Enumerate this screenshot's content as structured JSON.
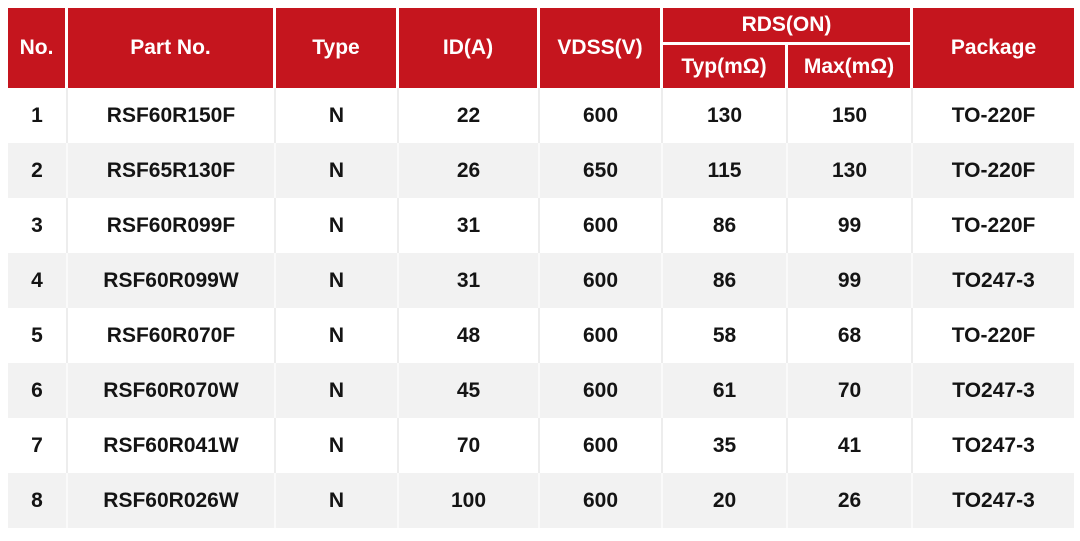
{
  "colors": {
    "header_bg": "#C5151E",
    "header_text": "#FFFFFF",
    "row_alt_bg": "#F2F2F2",
    "body_text": "#141414"
  },
  "table": {
    "headers": {
      "no": "No.",
      "part_no": "Part No.",
      "type": "Type",
      "id": "ID(A)",
      "vdss": "VDSS(V)",
      "rds_group": "RDS(ON)",
      "rds_typ": "Typ(mΩ)",
      "rds_max": "Max(mΩ)",
      "package": "Package"
    },
    "rows": [
      {
        "no": "1",
        "part_no": "RSF60R150F",
        "type": "N",
        "id": "22",
        "vdss": "600",
        "rds_typ": "130",
        "rds_max": "150",
        "package": "TO-220F"
      },
      {
        "no": "2",
        "part_no": "RSF65R130F",
        "type": "N",
        "id": "26",
        "vdss": "650",
        "rds_typ": "115",
        "rds_max": "130",
        "package": "TO-220F"
      },
      {
        "no": "3",
        "part_no": "RSF60R099F",
        "type": "N",
        "id": "31",
        "vdss": "600",
        "rds_typ": "86",
        "rds_max": "99",
        "package": "TO-220F"
      },
      {
        "no": "4",
        "part_no": "RSF60R099W",
        "type": "N",
        "id": "31",
        "vdss": "600",
        "rds_typ": "86",
        "rds_max": "99",
        "package": "TO247-3"
      },
      {
        "no": "5",
        "part_no": "RSF60R070F",
        "type": "N",
        "id": "48",
        "vdss": "600",
        "rds_typ": "58",
        "rds_max": "68",
        "package": "TO-220F"
      },
      {
        "no": "6",
        "part_no": "RSF60R070W",
        "type": "N",
        "id": "45",
        "vdss": "600",
        "rds_typ": "61",
        "rds_max": "70",
        "package": "TO247-3"
      },
      {
        "no": "7",
        "part_no": "RSF60R041W",
        "type": "N",
        "id": "70",
        "vdss": "600",
        "rds_typ": "35",
        "rds_max": "41",
        "package": "TO247-3"
      },
      {
        "no": "8",
        "part_no": "RSF60R026W",
        "type": "N",
        "id": "100",
        "vdss": "600",
        "rds_typ": "20",
        "rds_max": "26",
        "package": "TO247-3"
      }
    ]
  }
}
